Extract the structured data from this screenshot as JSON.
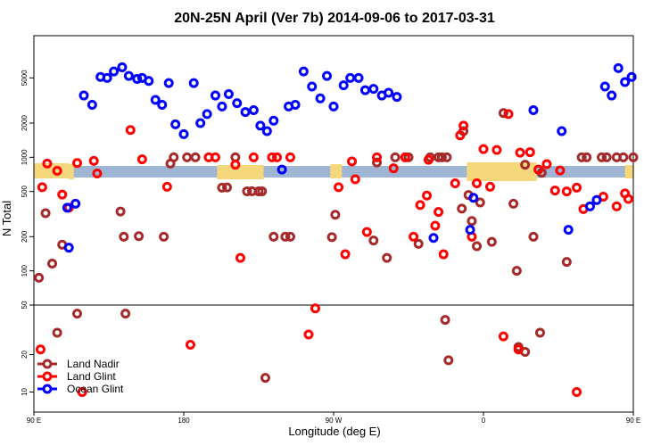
{
  "chart_data": {
    "type": "scatter",
    "title": "20N-25N April (Ver 7b)   2014-09-06 to 2017-03-31",
    "xlabel": "Longitude (deg E)",
    "ylabel": "N Total",
    "xlim": [
      90,
      450
    ],
    "x_ticks": [
      {
        "value": 90,
        "label": "90 E"
      },
      {
        "value": 180,
        "label": "180"
      },
      {
        "value": 270,
        "label": "90 W"
      },
      {
        "value": 360,
        "label": "0"
      },
      {
        "value": 450,
        "label": "90 E"
      },
      {
        "value": 540,
        "label": "180"
      }
    ],
    "upper_panel": {
      "scale": "log",
      "ylim": [
        50,
        10000
      ],
      "y_ticks": [
        100,
        200,
        500,
        1000,
        2000,
        5000
      ],
      "series": [
        {
          "name": "Land Nadir",
          "color": "#a52a2a",
          "points": [
            [
              93,
              87
            ],
            [
              97,
              322
            ],
            [
              101,
              116
            ],
            [
              107,
              170
            ],
            [
              116,
              42
            ],
            [
              142,
              333
            ],
            [
              144,
              200
            ],
            [
              145,
              42
            ],
            [
              153,
              202
            ],
            [
              168,
              200
            ],
            [
              172,
              880
            ],
            [
              174,
              1000
            ],
            [
              182,
              1000
            ],
            [
              187,
              1000
            ],
            [
              203,
              540
            ],
            [
              206,
              543
            ],
            [
              211,
              1000
            ],
            [
              218,
              502
            ],
            [
              221,
              503
            ],
            [
              225,
              501
            ],
            [
              227,
              502
            ],
            [
              234,
              200
            ],
            [
              241,
              200
            ],
            [
              244,
              200
            ],
            [
              269,
              198
            ],
            [
              271,
              312
            ],
            [
              294,
              185
            ],
            [
              296,
              900
            ],
            [
              302,
              130
            ],
            [
              307,
              1000
            ],
            [
              313,
              1000
            ],
            [
              315,
              1000
            ],
            [
              321,
              173
            ],
            [
              328,
              1000
            ],
            [
              333,
              1000
            ],
            [
              335,
              1000
            ],
            [
              338,
              1000
            ],
            [
              347,
              353
            ],
            [
              348,
              1700
            ],
            [
              351,
              465
            ],
            [
              353,
              275
            ],
            [
              356,
              165
            ],
            [
              358,
              400
            ],
            [
              365,
              180
            ],
            [
              372,
              2450
            ],
            [
              378,
              390
            ],
            [
              380,
              100
            ],
            [
              385,
              860
            ],
            [
              390,
              200
            ],
            [
              395,
              730
            ],
            [
              410,
              120
            ],
            [
              419,
              1000
            ],
            [
              422,
              1000
            ],
            [
              431,
              1000
            ],
            [
              434,
              1000
            ],
            [
              440,
              1000
            ],
            [
              444,
              1000
            ],
            [
              450,
              1000
            ],
            [
              452,
              1000
            ],
            [
              455,
              1000
            ],
            [
              459,
              1000
            ]
          ]
        },
        {
          "name": "Land Glint",
          "color": "#ff0000",
          "points": [
            [
              95,
              545
            ],
            [
              98,
              880
            ],
            [
              104,
              760
            ],
            [
              107,
              470
            ],
            [
              111,
              360
            ],
            [
              116,
              890
            ],
            [
              126,
              930
            ],
            [
              128,
              720
            ],
            [
              148,
              1740
            ],
            [
              155,
              960
            ],
            [
              170,
              550
            ],
            [
              195,
              1000
            ],
            [
              199,
              1000
            ],
            [
              211,
              860
            ],
            [
              214,
              130
            ],
            [
              222,
              1000
            ],
            [
              233,
              1000
            ],
            [
              236,
              1000
            ],
            [
              244,
              1000
            ],
            [
              273,
              545
            ],
            [
              277,
              140
            ],
            [
              281,
              920
            ],
            [
              283,
              640
            ],
            [
              290,
              220
            ],
            [
              296,
              1000
            ],
            [
              306,
              800
            ],
            [
              313,
              1000
            ],
            [
              318,
              200
            ],
            [
              322,
              380
            ],
            [
              326,
              460
            ],
            [
              327,
              950
            ],
            [
              331,
              250
            ],
            [
              333,
              330
            ],
            [
              336,
              140
            ],
            [
              343,
              590
            ],
            [
              346,
              1560
            ],
            [
              348,
              1900
            ],
            [
              353,
              200
            ],
            [
              356,
              590
            ],
            [
              360,
              1180
            ],
            [
              364,
              550
            ],
            [
              368,
              1160
            ],
            [
              375,
              2400
            ],
            [
              382,
              1100
            ],
            [
              388,
              1110
            ],
            [
              393,
              780
            ],
            [
              398,
              870
            ],
            [
              403,
              510
            ],
            [
              406,
              765
            ],
            [
              410,
              500
            ],
            [
              416,
              540
            ],
            [
              420,
              350
            ],
            [
              432,
              450
            ],
            [
              440,
              370
            ],
            [
              445,
              480
            ],
            [
              447,
              430
            ]
          ]
        },
        {
          "name": "Ocean Glint",
          "color": "#0000ff",
          "points": [
            [
              110,
              360
            ],
            [
              111,
              160
            ],
            [
              115,
              390
            ],
            [
              120,
              3500
            ],
            [
              125,
              2900
            ],
            [
              130,
              5100
            ],
            [
              134,
              5000
            ],
            [
              138,
              5700
            ],
            [
              143,
              6200
            ],
            [
              147,
              5200
            ],
            [
              152,
              4900
            ],
            [
              155,
              5000
            ],
            [
              159,
              4700
            ],
            [
              163,
              3200
            ],
            [
              167,
              2900
            ],
            [
              171,
              4500
            ],
            [
              175,
              1950
            ],
            [
              180,
              1600
            ],
            [
              186,
              4500
            ],
            [
              190,
              2000
            ],
            [
              194,
              2400
            ],
            [
              199,
              3500
            ],
            [
              203,
              2800
            ],
            [
              207,
              3600
            ],
            [
              212,
              3000
            ],
            [
              217,
              2500
            ],
            [
              222,
              2600
            ],
            [
              226,
              1900
            ],
            [
              230,
              1700
            ],
            [
              234,
              2100
            ],
            [
              239,
              780
            ],
            [
              243,
              2800
            ],
            [
              247,
              2900
            ],
            [
              252,
              5700
            ],
            [
              257,
              4200
            ],
            [
              262,
              3300
            ],
            [
              266,
              5200
            ],
            [
              270,
              2800
            ],
            [
              276,
              4300
            ],
            [
              280,
              5000
            ],
            [
              285,
              5000
            ],
            [
              289,
              3900
            ],
            [
              294,
              4000
            ],
            [
              299,
              3500
            ],
            [
              303,
              3700
            ],
            [
              308,
              3400
            ],
            [
              330,
              195
            ],
            [
              352,
              230
            ],
            [
              354,
              440
            ],
            [
              390,
              2600
            ],
            [
              407,
              1700
            ],
            [
              411,
              230
            ],
            [
              424,
              370
            ],
            [
              428,
              420
            ],
            [
              433,
              4200
            ],
            [
              437,
              3500
            ],
            [
              441,
              6100
            ],
            [
              445,
              4600
            ],
            [
              449,
              5100
            ],
            [
              453,
              6800
            ],
            [
              458,
              6000
            ],
            [
              462,
              6600
            ],
            [
              466,
              5000
            ],
            [
              470,
              5200
            ],
            [
              474,
              4800
            ],
            [
              478,
              5100
            ]
          ]
        }
      ]
    },
    "lower_panel": {
      "scale": "log",
      "ylim": [
        8,
        50
      ],
      "y_ticks": [
        10,
        20,
        50
      ],
      "series": [
        {
          "name": "Land Nadir",
          "color": "#a52a2a",
          "points": [
            [
              104,
              30
            ],
            [
              229,
              13
            ],
            [
              337,
              38
            ],
            [
              339,
              18
            ],
            [
              381,
              23
            ],
            [
              385,
              21
            ],
            [
              394,
              30
            ]
          ]
        },
        {
          "name": "Land Glint",
          "color": "#ff0000",
          "points": [
            [
              94,
              22
            ],
            [
              119,
              10
            ],
            [
              184,
              24
            ],
            [
              255,
              29
            ],
            [
              259,
              47
            ],
            [
              372,
              28
            ],
            [
              381,
              22
            ],
            [
              416,
              10
            ]
          ]
        }
      ]
    },
    "axis_break_y": 50,
    "legend": {
      "position": "bottom-left",
      "entries": [
        {
          "label": "Land Nadir",
          "color": "#a52a2a"
        },
        {
          "label": "Land Glint",
          "color": "#ff0000"
        },
        {
          "label": "Ocean Glint",
          "color": "#0000ff"
        }
      ]
    },
    "land_band_color": "#f5d77c",
    "ocean_band_color": "#9fb5d4",
    "grid": false
  }
}
